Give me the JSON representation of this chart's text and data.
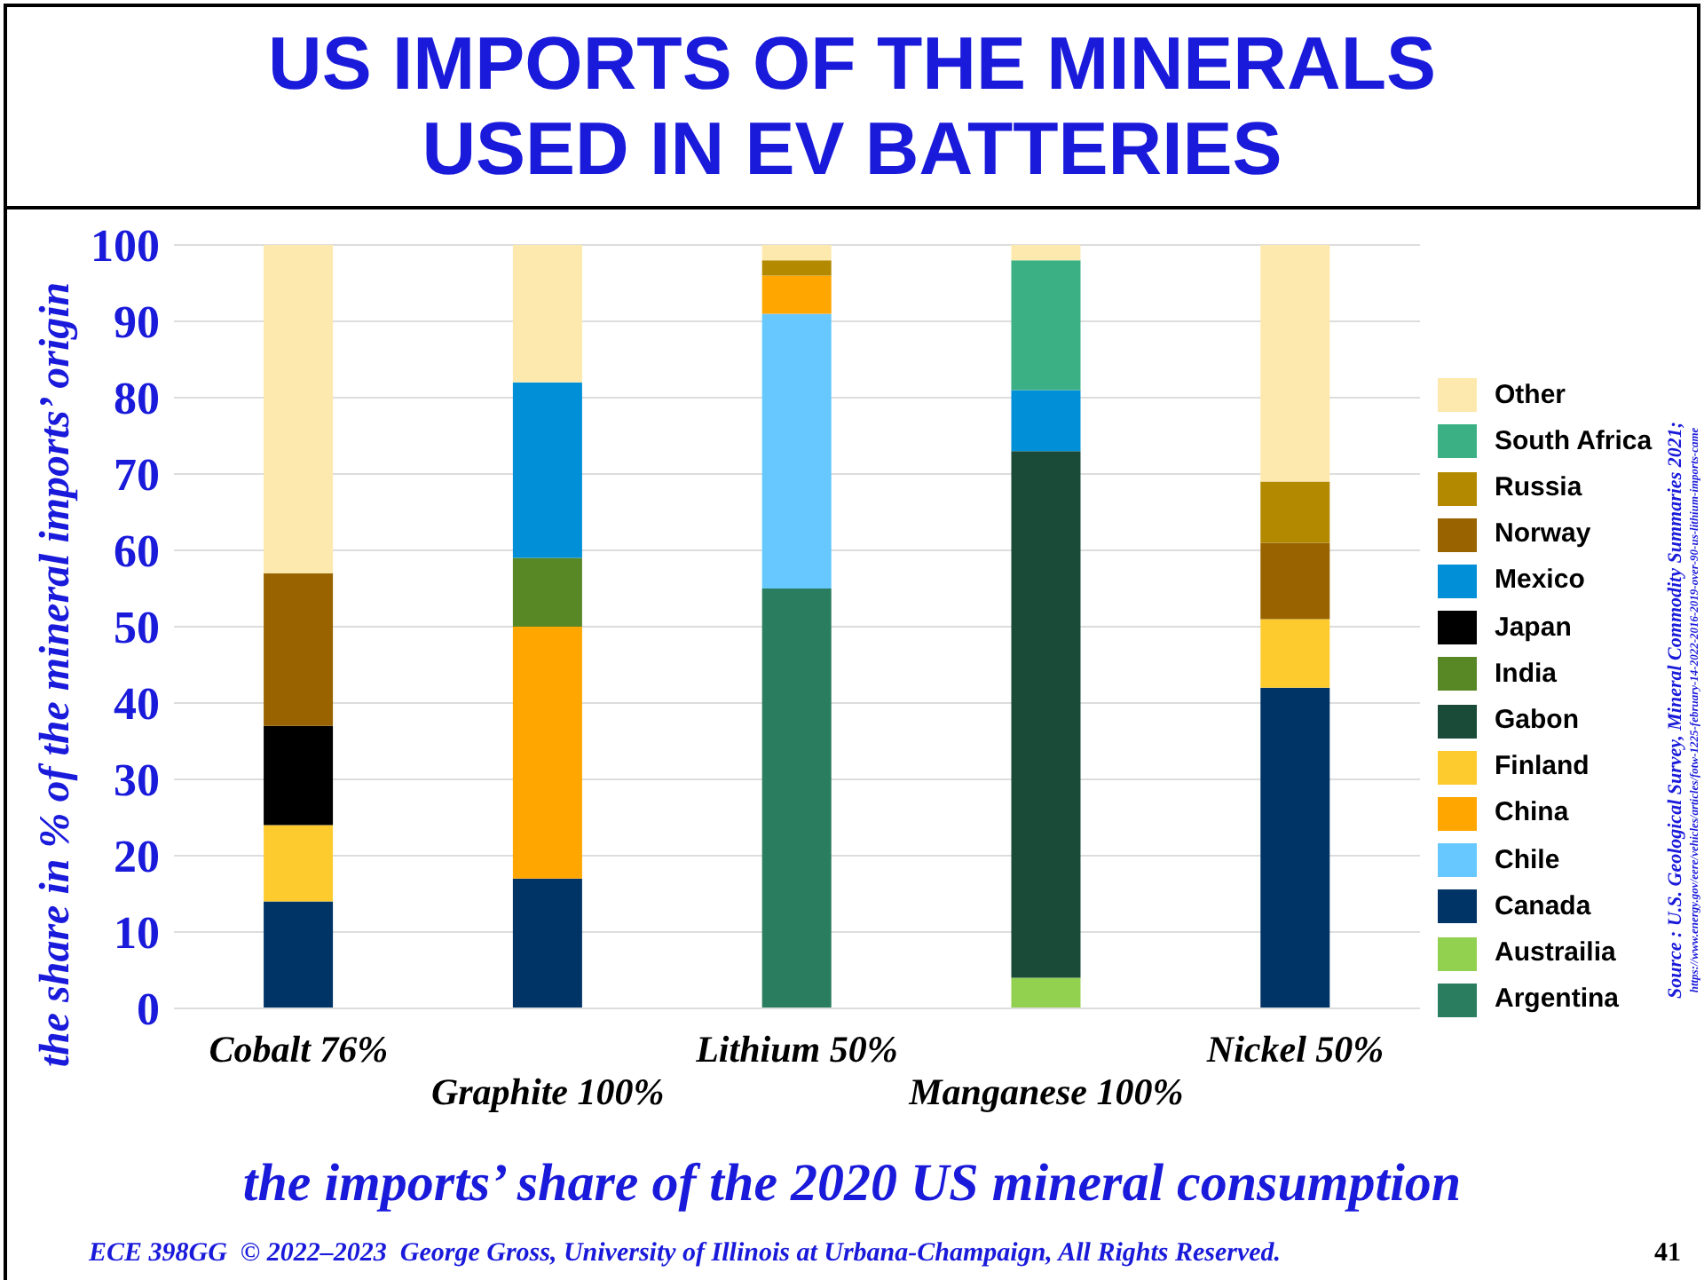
{
  "chart_data": {
    "type": "bar",
    "title": "US IMPORTS OF THE MINERALS USED IN EV BATTERIES",
    "xlabel": "the imports’ share of the 2020 US mineral consumption",
    "ylabel": "the share in % of the mineral imports’ origin",
    "categories": [
      "Cobalt 76%",
      "Graphite 100%",
      "Lithium 50%",
      "Manganese 100%",
      "Nickel 50%"
    ],
    "stacked": true,
    "ylim": [
      0,
      100
    ],
    "yticks": [
      0,
      10,
      20,
      30,
      40,
      50,
      60,
      70,
      80,
      90,
      100
    ],
    "grid": "y",
    "legend": "right",
    "series": [
      {
        "name": "Argentina",
        "color": "#2a7d5e",
        "values": [
          null,
          null,
          55,
          null,
          null
        ]
      },
      {
        "name": "Austrailia",
        "color": "#92d050",
        "values": [
          null,
          null,
          null,
          4,
          null
        ]
      },
      {
        "name": "Canada",
        "color": "#003366",
        "values": [
          14,
          17,
          null,
          null,
          42
        ]
      },
      {
        "name": "Chile",
        "color": "#66c8fe",
        "values": [
          null,
          null,
          36,
          null,
          null
        ]
      },
      {
        "name": "China",
        "color": "#ffa600",
        "values": [
          null,
          33,
          5,
          null,
          null
        ]
      },
      {
        "name": "Finland",
        "color": "#fecb2f",
        "values": [
          10,
          null,
          null,
          null,
          9
        ]
      },
      {
        "name": "Gabon",
        "color": "#1a4a38",
        "values": [
          null,
          null,
          null,
          69,
          null
        ]
      },
      {
        "name": "India",
        "color": "#588726",
        "values": [
          null,
          9,
          null,
          null,
          null
        ]
      },
      {
        "name": "Japan",
        "color": "#000000",
        "values": [
          13,
          null,
          null,
          null,
          null
        ]
      },
      {
        "name": "Mexico",
        "color": "#0190d8",
        "values": [
          null,
          23,
          null,
          8,
          null
        ]
      },
      {
        "name": "Norway",
        "color": "#996300",
        "values": [
          20,
          null,
          null,
          null,
          10
        ]
      },
      {
        "name": "Russia",
        "color": "#b38900",
        "values": [
          null,
          null,
          2,
          null,
          8
        ]
      },
      {
        "name": "South Africa",
        "color": "#3bb085",
        "values": [
          null,
          null,
          null,
          17,
          null
        ]
      },
      {
        "name": "Other",
        "color": "#fde9ad",
        "values": [
          43,
          18,
          2,
          2,
          31
        ]
      }
    ],
    "annotations": [
      "Source : U.S. Geological Survey, Mineral Commodity Summaries 2021;",
      "https://www.energy.gov/eere/vehicles/articles/fotw-1225-february-14-2022-2016-2019-over-90-us-lithium-imports-came",
      "ECE 398GG  © 2022–2023  George Gross, University of Illinois at Urbana-Champaign, All Rights Reserved.",
      "41"
    ]
  }
}
